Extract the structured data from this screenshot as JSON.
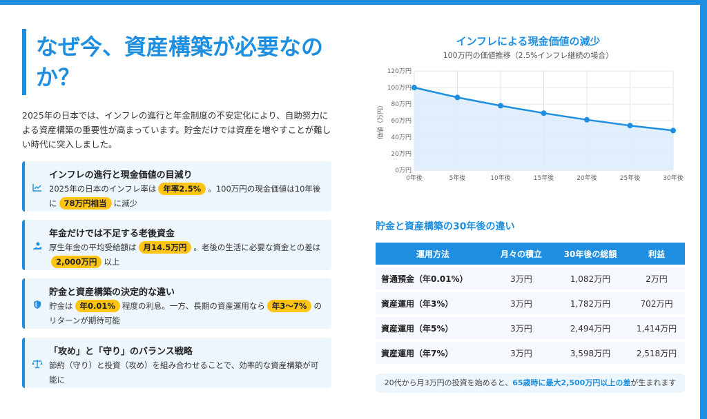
{
  "title": "なぜ今、資産構築が必要なのか？",
  "intro": "2025年の日本では、インフレの進行と年金制度の不安定化により、自助努力による資産構築の重要性が高まっています。貯金だけでは資産を増やすことが難しい時代に突入しました。",
  "cards": [
    {
      "icon": "chart-line-icon",
      "title": "インフレの進行と現金価値の目減り",
      "pre": "2025年の日本のインフレ率は",
      "hl1": "年率2.5%",
      "mid": "。100万円の現金価値は10年後に",
      "hl2": "78万円相当",
      "post": "に減少"
    },
    {
      "icon": "hand-coin-icon",
      "title": "年金だけでは不足する老後資金",
      "pre": "厚生年金の平均受給額は",
      "hl1": "月14.5万円",
      "mid": "。老後の生活に必要な資金との差は",
      "hl2": "2,000万円",
      "post": "以上"
    },
    {
      "icon": "shield-icon",
      "title": "貯金と資産構築の決定的な違い",
      "pre": "貯金は",
      "hl1": "年0.01%",
      "mid": "程度の利息。一方、長期の資産運用なら",
      "hl2": "年3〜7%",
      "post": "のリターンが期待可能"
    },
    {
      "icon": "balance-scale-icon",
      "title": "「攻め」と「守り」のバランス戦略",
      "body": "節約（守り）と投資（攻め）を組み合わせることで、効率的な資産構築が可能に"
    }
  ],
  "chart": {
    "title": "インフレによる現金価値の減少",
    "subtitle": "100万円の価値推移（2.5%インフレ継続の場合）"
  },
  "chart_data": {
    "type": "area",
    "x": [
      "0年後",
      "5年後",
      "10年後",
      "15年後",
      "20年後",
      "25年後",
      "30年後"
    ],
    "values": [
      100,
      88,
      78,
      69,
      61,
      54,
      48
    ],
    "y_ticks": [
      "0万円",
      "20万円",
      "40万円",
      "60万円",
      "80万円",
      "100万円",
      "120万円"
    ],
    "ylim": [
      0,
      120
    ],
    "ylabel": "価値（万円）",
    "grid": true,
    "line_color": "#1e8fe0",
    "fill_color": "#dcecfb"
  },
  "table": {
    "title": "貯金と資産構築の30年後の違い",
    "headers": [
      "運用方法",
      "月々の積立",
      "30年後の総額",
      "利益"
    ],
    "rows": [
      [
        "普通預金（年0.01%）",
        "3万円",
        "1,082万円",
        "2万円"
      ],
      [
        "資産運用（年3%）",
        "3万円",
        "1,782万円",
        "702万円"
      ],
      [
        "資産運用（年5%）",
        "3万円",
        "2,494万円",
        "1,414万円"
      ],
      [
        "資産運用（年7%）",
        "3万円",
        "3,598万円",
        "2,518万円"
      ]
    ]
  },
  "note": {
    "pre": "20代から月3万円の投資を始めると、",
    "strong": "65歳時に最大2,500万円以上の差",
    "post": "が生まれます"
  },
  "colors": {
    "accent": "#1e8fe0",
    "highlight": "#ffc414",
    "card_bg": "#eef6fd"
  }
}
